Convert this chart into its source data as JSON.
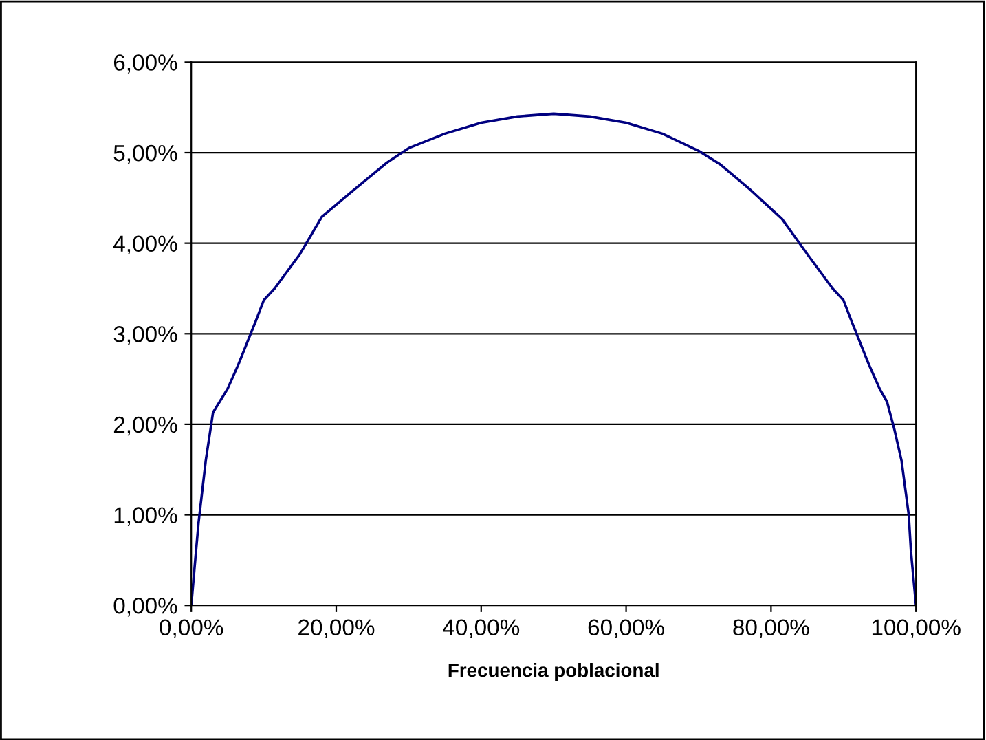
{
  "chart_data": {
    "type": "line",
    "xlabel": "Frecuencia poblacional",
    "x": [
      0,
      0.5,
      1,
      2,
      3,
      5,
      6.5,
      8,
      9,
      10,
      11.5,
      15,
      18,
      22,
      27,
      30,
      35,
      40,
      45,
      50,
      55,
      60,
      65,
      70,
      73,
      77,
      81.5,
      85,
      88.5,
      90,
      91,
      92,
      93.5,
      95,
      96,
      97,
      98,
      99,
      99.3,
      100
    ],
    "series": [
      {
        "color": "#000080",
        "values": [
          0,
          0.46,
          0.91,
          1.6,
          2.13,
          2.39,
          2.66,
          2.96,
          3.16,
          3.37,
          3.5,
          3.88,
          4.29,
          4.56,
          4.89,
          5.05,
          5.21,
          5.33,
          5.4,
          5.43,
          5.4,
          5.33,
          5.21,
          5.02,
          4.87,
          4.6,
          4.27,
          3.88,
          3.5,
          3.37,
          3.16,
          2.96,
          2.66,
          2.39,
          2.25,
          1.95,
          1.6,
          1.0,
          0.6,
          0
        ]
      }
    ],
    "xlim": [
      0,
      100
    ],
    "ylim": [
      0,
      6
    ],
    "xticks": [
      {
        "value": 0,
        "label": "0,00%"
      },
      {
        "value": 20,
        "label": "20,00%"
      },
      {
        "value": 40,
        "label": "40,00%"
      },
      {
        "value": 60,
        "label": "60,00%"
      },
      {
        "value": 80,
        "label": "80,00%"
      },
      {
        "value": 100,
        "label": "100,00%"
      }
    ],
    "yticks": [
      {
        "value": 0,
        "label": "0,00%"
      },
      {
        "value": 1,
        "label": "1,00%"
      },
      {
        "value": 2,
        "label": "2,00%"
      },
      {
        "value": 3,
        "label": "3,00%"
      },
      {
        "value": 4,
        "label": "4,00%"
      },
      {
        "value": 5,
        "label": "5,00%"
      },
      {
        "value": 6,
        "label": "6,00%"
      }
    ],
    "grid": "y",
    "marker": "none",
    "line_style": "solid"
  }
}
